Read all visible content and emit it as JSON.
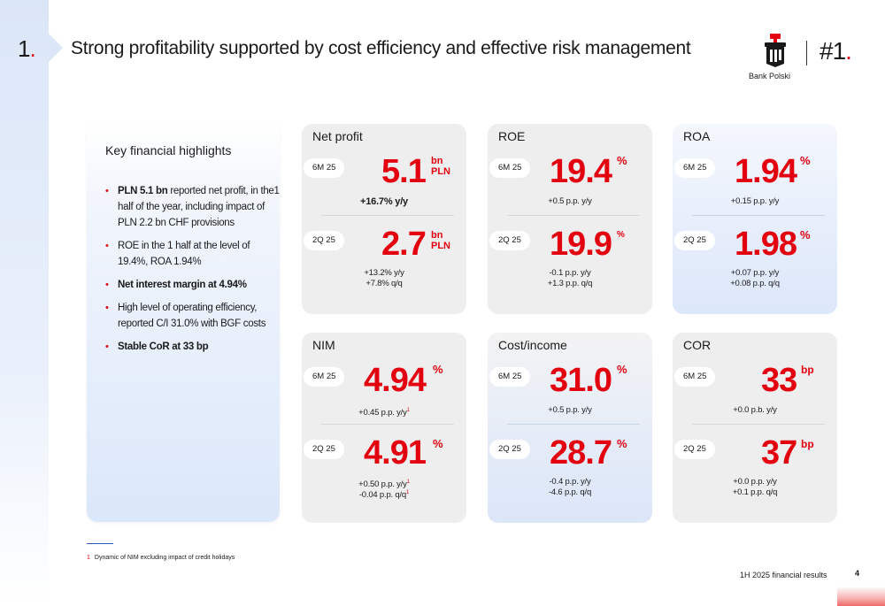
{
  "header": {
    "section_number": "1",
    "section_dot": ".",
    "title": "Strong profitability supported by cost efficiency and effective risk management"
  },
  "logo": {
    "text": "Bank Polski",
    "rank": "#1",
    "rank_dot": ".",
    "brand_color": "#e3000f"
  },
  "highlights": {
    "title": "Key financial highlights",
    "items": [
      {
        "bold": "PLN 5.1 bn",
        "text": " reported net profit, in  the1 half of the year, including impact of PLN 2.2 bn CHF provisions"
      },
      {
        "bold": "",
        "text": "ROE  in the 1 half at the level of 19.4%, ROA 1.94%"
      },
      {
        "bold": "Net interest margin at 4.94%",
        "text": ""
      },
      {
        "bold": "",
        "text": "High level of operating efficiency, reported C/I 31.0% with BGF costs"
      },
      {
        "bold": "Stable CoR at 33 bp",
        "text": ""
      }
    ]
  },
  "cards": {
    "net_profit": {
      "title": "Net profit",
      "p1_label": "6M 25",
      "p1_value": "5.1",
      "p1_unit_a": "bn",
      "p1_unit_b": "PLN",
      "p1_sub": "+16.7% y/y",
      "p2_label": "2Q 25",
      "p2_value": "2.7",
      "p2_unit_a": "bn",
      "p2_unit_b": "PLN",
      "p2_sub1": "+13.2% y/y",
      "p2_sub2": "+7.8% q/q"
    },
    "roe": {
      "title": "ROE",
      "p1_label": "6M 25",
      "p1_value": "19.4",
      "p1_unit": "%",
      "p1_sub": "+0.5 p.p. y/y",
      "p2_label": "2Q 25",
      "p2_value": "19.9",
      "p2_unit": "%",
      "p2_sub1": "-0.1 p.p. y/y",
      "p2_sub2": "+1.3 p.p. q/q"
    },
    "roa": {
      "title": "ROA",
      "p1_label": "6M 25",
      "p1_value": "1.94",
      "p1_unit": "%",
      "p1_sub": "+0.15 p.p. y/y",
      "p2_label": "2Q 25",
      "p2_value": "1.98",
      "p2_unit": "%",
      "p2_sub1": "+0.07 p.p. y/y",
      "p2_sub2": "+0.08 p.p. q/q"
    },
    "nim": {
      "title": "NIM",
      "p1_label": "6M 25",
      "p1_value": "4.94",
      "p1_unit": "%",
      "p1_sub": "+0.45 p.p. y/y",
      "p1_sup": "1",
      "p2_label": "2Q 25",
      "p2_value": "4.91",
      "p2_unit": "%",
      "p2_sub1": "+0.50 p.p. y/y",
      "p2_sub1_sup": "1",
      "p2_sub2": "-0.04 p.p. q/q",
      "p2_sub2_sup": "1"
    },
    "cost_income": {
      "title": "Cost/income",
      "p1_label": "6M 25",
      "p1_value": "31.0",
      "p1_unit": "%",
      "p1_sub": "+0.5 p.p. y/y",
      "p2_label": "2Q 25",
      "p2_value": "28.7",
      "p2_unit": "%",
      "p2_sub1": "-0.4 p.p. y/y",
      "p2_sub2": "-4.6 p.p. q/q"
    },
    "cor": {
      "title": "COR",
      "p1_label": "6M 25",
      "p1_value": "33",
      "p1_unit": "bp",
      "p1_sub": "+0.0 p.b. y/y",
      "p2_label": "2Q 25",
      "p2_value": "37",
      "p2_unit": "bp",
      "p2_sub1": "+0.0 p.p. y/y",
      "p2_sub2": "+0.1 p.p. q/q"
    }
  },
  "footnote": {
    "num": "1",
    "text": "Dynamic of NIM excluding impact of credit holidays"
  },
  "footer": {
    "text": "1H 2025 financial results",
    "page": "4"
  }
}
